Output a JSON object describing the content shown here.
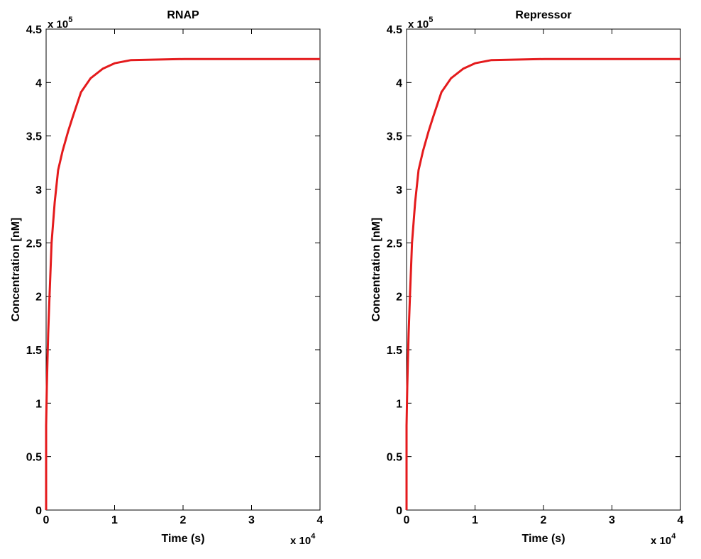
{
  "chart_data": [
    {
      "type": "line",
      "title": "RNAP",
      "xlabel": "Time (s)",
      "ylabel": "Concentration [nM]",
      "xlim": [
        0,
        40000
      ],
      "ylim": [
        0,
        450000
      ],
      "x_ticks": [
        0,
        1,
        2,
        3,
        4
      ],
      "y_ticks": [
        0,
        0.5,
        1,
        1.5,
        2,
        2.5,
        3,
        3.5,
        4,
        4.5
      ],
      "x_exponent": "x 10",
      "x_exponent_power": "4",
      "y_exponent": "x 10",
      "y_exponent_power": "5",
      "grid": false,
      "series": [
        {
          "name": "RNAP",
          "color": "#e41a1c",
          "x": [
            0,
            0,
            100,
            200,
            300,
            500,
            800,
            1250,
            1750,
            2400,
            3200,
            3900,
            5100,
            6500,
            8300,
            10000,
            12400,
            20200,
            40000
          ],
          "y": [
            0,
            79000,
            115000,
            140000,
            165000,
            200000,
            250000,
            288000,
            318000,
            336000,
            354000,
            368000,
            391000,
            404000,
            413000,
            418000,
            421000,
            422000,
            422000
          ]
        }
      ]
    },
    {
      "type": "line",
      "title": "Repressor",
      "xlabel": "Time (s)",
      "ylabel": "Concentration [nM]",
      "xlim": [
        0,
        40000
      ],
      "ylim": [
        0,
        450000
      ],
      "x_ticks": [
        0,
        1,
        2,
        3,
        4
      ],
      "y_ticks": [
        0,
        0.5,
        1,
        1.5,
        2,
        2.5,
        3,
        3.5,
        4,
        4.5
      ],
      "x_exponent": "x 10",
      "x_exponent_power": "4",
      "y_exponent": "x 10",
      "y_exponent_power": "5",
      "grid": false,
      "series": [
        {
          "name": "Repressor",
          "color": "#e41a1c",
          "x": [
            0,
            0,
            100,
            200,
            300,
            500,
            800,
            1250,
            1750,
            2400,
            3200,
            3900,
            5100,
            6500,
            8300,
            10000,
            12400,
            20200,
            40000
          ],
          "y": [
            0,
            79000,
            115000,
            140000,
            165000,
            200000,
            250000,
            288000,
            318000,
            336000,
            354000,
            368000,
            391000,
            404000,
            413000,
            418000,
            421000,
            422000,
            422000
          ]
        }
      ]
    }
  ]
}
